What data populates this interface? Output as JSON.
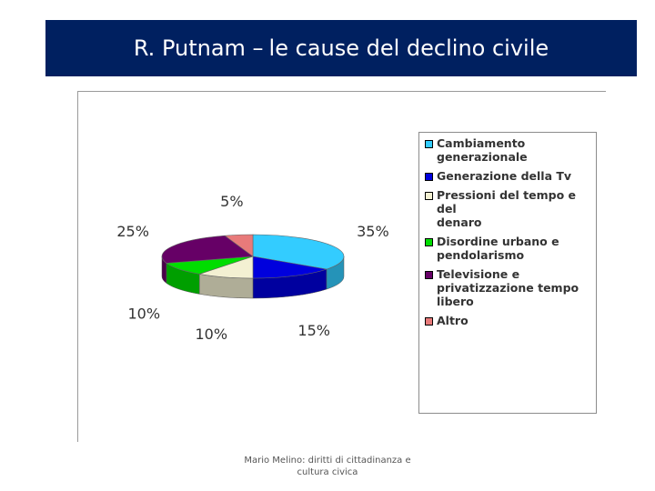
{
  "slide": {
    "title_part_1": "R. Putnam –",
    "title_part_2": "le cause del declino civile"
  },
  "chart_data": {
    "type": "pie",
    "categories": [
      "Cambiamento generazionale",
      "Generazione della Tv",
      "Pressioni del tempo e del denaro",
      "Disordine urbano e pendolarismo",
      "Televisione e privatizzazione tempo libero",
      "Altro"
    ],
    "values": [
      35,
      15,
      10,
      10,
      25,
      5
    ],
    "value_labels": [
      "35%",
      "15%",
      "10%",
      "10%",
      "25%",
      "5%"
    ],
    "colors": [
      "#33ccff",
      "#0000dd",
      "#f3f0d2",
      "#00dd00",
      "#660066",
      "#e87a7a"
    ],
    "style": "3d",
    "legend_position": "right"
  },
  "legend": {
    "items": [
      {
        "line1": "Cambiamento",
        "line2": "generazionale",
        "line3": ""
      },
      {
        "line1": "Generazione della Tv",
        "line2": "",
        "line3": ""
      },
      {
        "line1": "Pressioni del tempo e del",
        "line2": "denaro",
        "line3": ""
      },
      {
        "line1": "Disordine urbano e",
        "line2": "pendolarismo",
        "line3": ""
      },
      {
        "line1": "Televisione e",
        "line2": "privatizzazione tempo",
        "line3": "libero"
      },
      {
        "line1": "Altro",
        "line2": "",
        "line3": ""
      }
    ]
  },
  "footer": {
    "line1": "Mario Melino: diritti di cittadinanza e",
    "line2": "cultura civica"
  }
}
